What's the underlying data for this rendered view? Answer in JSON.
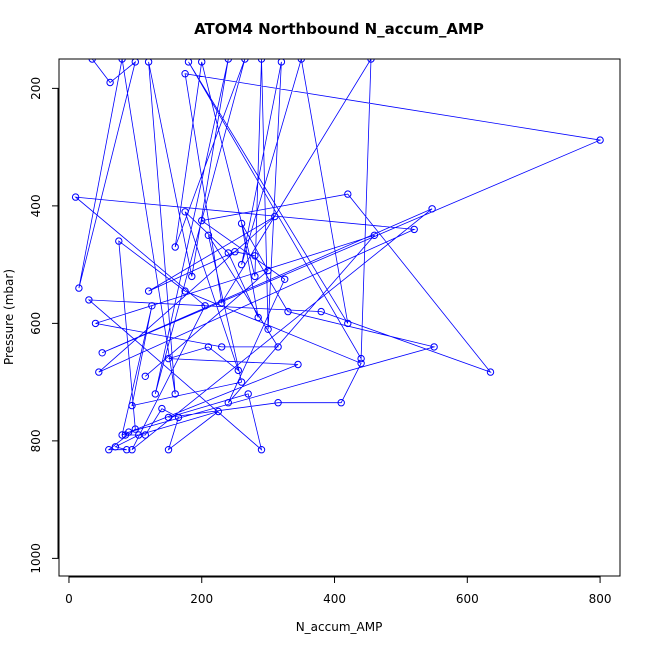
{
  "chart_data": {
    "type": "line",
    "title": "ATOM4 Northbound N_accum_AMP",
    "xlabel": "N_accum_AMP",
    "ylabel": "Pressure (mbar)",
    "xlim": [
      -15,
      830
    ],
    "ylim": [
      1030,
      150
    ],
    "y_reversed": true,
    "xticks": [
      0,
      200,
      400,
      600,
      800
    ],
    "yticks": [
      200,
      400,
      600,
      800,
      1000
    ],
    "grid": false,
    "line_color": "#0000ff",
    "marker": "open-circle",
    "series": [
      {
        "x": [
          35,
          62,
          100,
          15,
          80,
          160,
          120,
          185,
          240,
          130,
          265,
          160,
          200,
          280,
          290,
          300,
          320,
          260,
          350,
          420,
          180,
          440,
          455,
          230,
          175,
          800,
          50,
          547,
          95,
          205,
          10,
          520,
          45,
          310,
          120,
          250,
          280,
          330,
          550,
          90,
          85,
          115,
          140,
          165,
          150,
          225,
          105,
          70,
          87,
          60,
          100,
          75,
          175,
          440,
          410,
          315,
          150,
          270,
          290,
          30,
          380,
          635,
          420,
          200,
          325,
          240,
          460,
          40,
          230,
          315,
          210,
          260,
          95,
          125,
          80,
          345,
          150,
          210,
          255,
          175,
          240,
          285,
          260,
          300,
          115
        ],
        "y": [
          150,
          190,
          155,
          540,
          150,
          720,
          155,
          520,
          150,
          720,
          150,
          470,
          155,
          520,
          150,
          610,
          155,
          500,
          150,
          600,
          155,
          660,
          150,
          565,
          175,
          288,
          650,
          405,
          815,
          570,
          385,
          440,
          683,
          418,
          545,
          478,
          485,
          580,
          640,
          785,
          790,
          790,
          745,
          760,
          815,
          750,
          790,
          810,
          815,
          815,
          780,
          460,
          545,
          668,
          735,
          735,
          760,
          720,
          815,
          560,
          580,
          683,
          380,
          425,
          525,
          735,
          450,
          600,
          640,
          640,
          450,
          700,
          740,
          570,
          790,
          670,
          660,
          640,
          680,
          410,
          480,
          590,
          430,
          510,
          690
        ]
      }
    ]
  }
}
